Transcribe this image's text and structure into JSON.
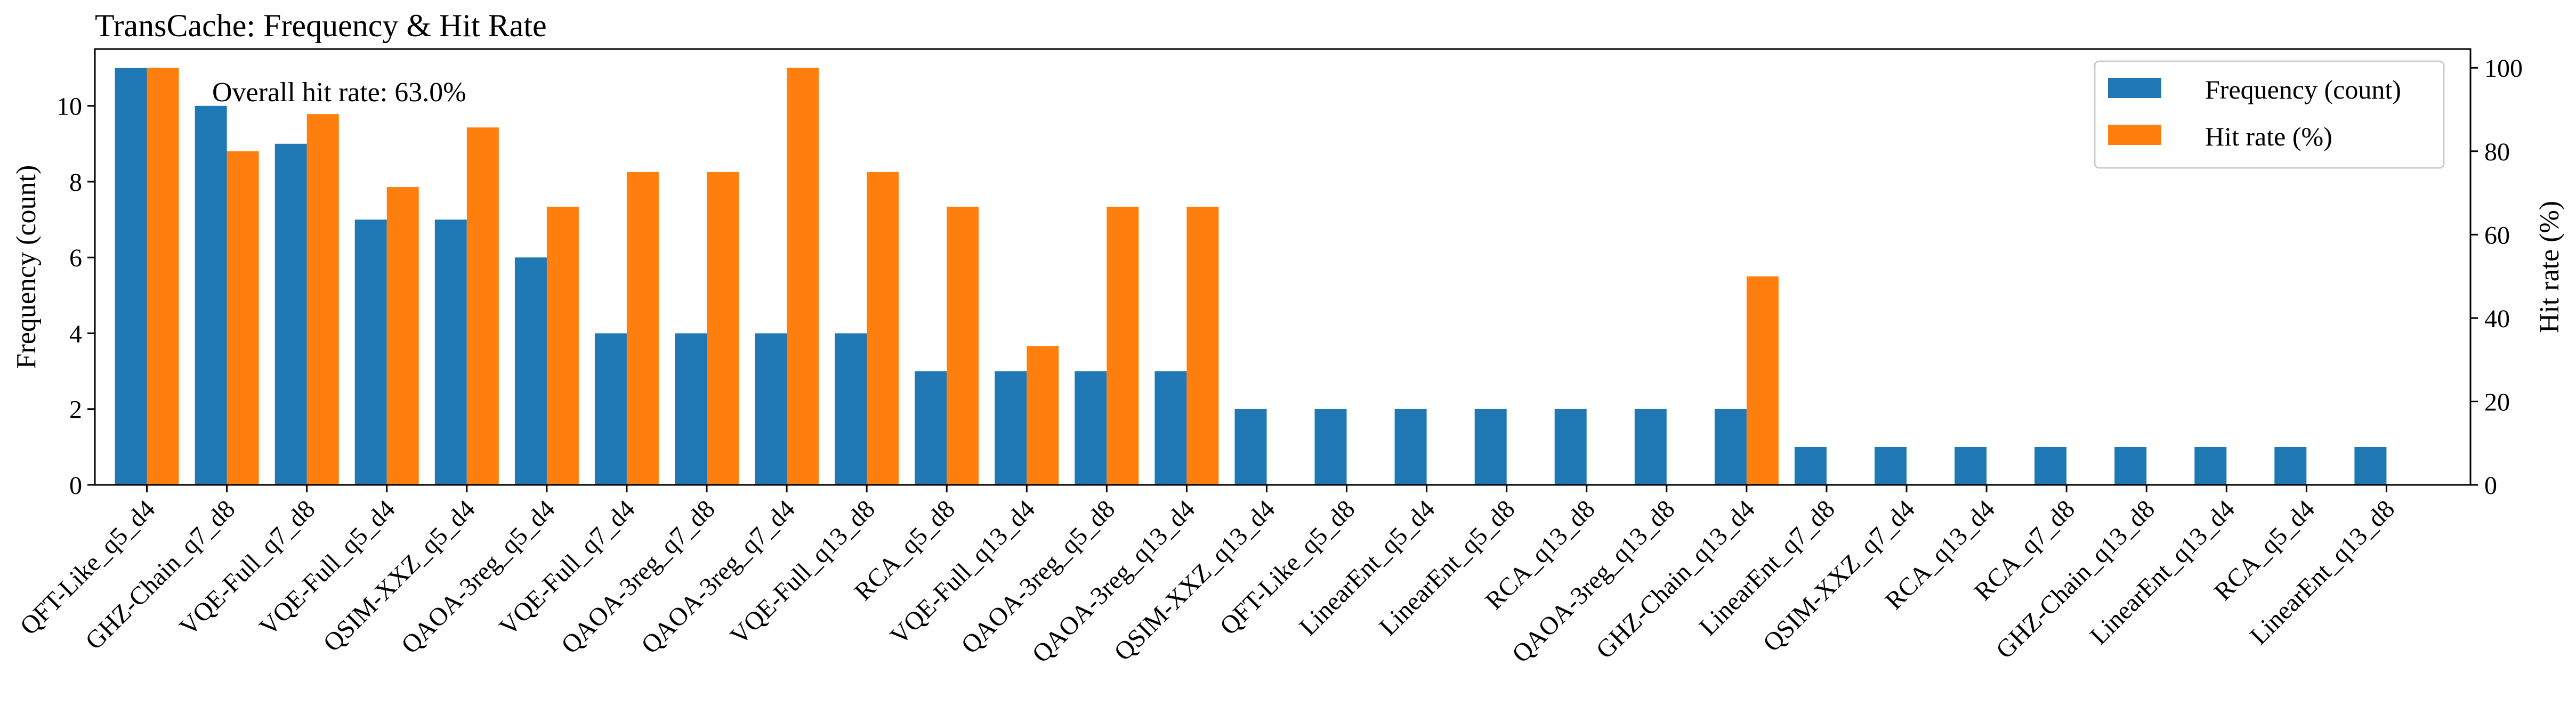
{
  "chart_data": {
    "type": "bar",
    "title": "TransCache: Frequency & Hit Rate",
    "xlabel": "",
    "ylabel": "Frequency (count)",
    "y2label": "Hit rate (%)",
    "ylim": [
      0,
      11.5
    ],
    "y2lim": [
      0,
      104.5
    ],
    "yticks": [
      0,
      2,
      4,
      6,
      8,
      10
    ],
    "y2ticks": [
      0,
      20,
      40,
      60,
      80,
      100
    ],
    "grid": false,
    "legend_position": "top-right",
    "annotation": "Overall hit rate: 63.0%",
    "categories": [
      "QFT-Like_q5_d4",
      "GHZ-Chain_q7_d8",
      "VQE-Full_q7_d8",
      "VQE-Full_q5_d4",
      "QSIM-XXZ_q5_d4",
      "QAOA-3reg_q5_d4",
      "VQE-Full_q7_d4",
      "QAOA-3reg_q7_d8",
      "QAOA-3reg_q7_d4",
      "VQE-Full_q13_d8",
      "RCA_q5_d8",
      "VQE-Full_q13_d4",
      "QAOA-3reg_q5_d8",
      "QAOA-3reg_q13_d4",
      "QSIM-XXZ_q13_d4",
      "QFT-Like_q5_d8",
      "LinearEnt_q5_d4",
      "LinearEnt_q5_d8",
      "RCA_q13_d8",
      "QAOA-3reg_q13_d8",
      "GHZ-Chain_q13_d4",
      "LinearEnt_q7_d8",
      "QSIM-XXZ_q7_d4",
      "RCA_q13_d4",
      "RCA_q7_d8",
      "GHZ-Chain_q13_d8",
      "LinearEnt_q13_d4",
      "RCA_q5_d4",
      "LinearEnt_q13_d8"
    ],
    "series": [
      {
        "name": "Frequency (count)",
        "axis": "left",
        "color": "#1f77b4",
        "values": [
          11,
          10,
          9,
          7,
          7,
          6,
          4,
          4,
          4,
          4,
          3,
          3,
          3,
          3,
          2,
          2,
          2,
          2,
          2,
          2,
          2,
          1,
          1,
          1,
          1,
          1,
          1,
          1,
          1
        ]
      },
      {
        "name": "Hit rate (%)",
        "axis": "right",
        "color": "#ff7f0e",
        "values": [
          100,
          80,
          88.9,
          71.4,
          85.7,
          66.7,
          75,
          75,
          100,
          75,
          66.7,
          33.3,
          66.7,
          66.7,
          0,
          0,
          0,
          0,
          0,
          0,
          50,
          0,
          0,
          0,
          0,
          0,
          0,
          0,
          0
        ]
      }
    ]
  }
}
